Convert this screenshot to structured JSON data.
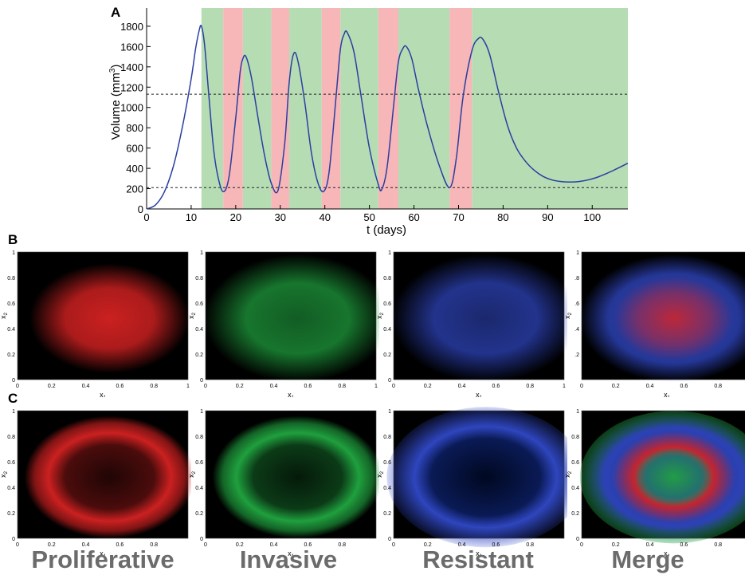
{
  "panels": {
    "a": "A",
    "b": "B",
    "c": "C"
  },
  "column_labels": [
    "Proliferative",
    "Invasive",
    "Resistant",
    "Merge"
  ],
  "colors": {
    "curve": "#2a3fa0",
    "treatment_on": "#b6dcb4",
    "treatment_off": "#f7b6b8",
    "proliferative": "#d62222",
    "invasive": "#21a841",
    "resistant": "#3149c8",
    "label_gray": "#6b6b6b"
  },
  "chart_data": [
    {
      "type": "line",
      "title": "",
      "xlabel": "t (days)",
      "ylabel": "Volume (mm",
      "ylabel_superscript": "3",
      "ylabel_suffix": ")",
      "xlim": [
        0,
        108
      ],
      "ylim": [
        0,
        1980
      ],
      "xticks": [
        0,
        10,
        20,
        30,
        40,
        50,
        60,
        70,
        80,
        90,
        100
      ],
      "yticks": [
        0,
        200,
        400,
        600,
        800,
        1000,
        1200,
        1400,
        1600,
        1800
      ],
      "thresholds": [
        1130,
        210
      ],
      "treatment_on_intervals": [
        [
          12.3,
          17.2
        ],
        [
          21.6,
          28.0
        ],
        [
          32.0,
          39.3
        ],
        [
          43.5,
          52.0
        ],
        [
          56.5,
          68.0
        ],
        [
          73.0,
          108
        ]
      ],
      "treatment_off_intervals": [
        [
          17.2,
          21.6
        ],
        [
          28.0,
          32.0
        ],
        [
          39.3,
          43.5
        ],
        [
          52.0,
          56.5
        ],
        [
          68.0,
          73.0
        ]
      ],
      "series": [
        {
          "x": [
            0,
            2,
            4,
            6,
            8,
            10,
            11,
            11.8,
            12.3,
            13,
            14,
            15,
            16,
            17.2,
            18.5,
            20,
            21,
            21.6,
            22.3,
            23.5,
            25,
            26.5,
            28,
            29.5,
            31,
            32,
            33,
            34,
            35.5,
            37,
            38.5,
            39.8,
            41,
            42.5,
            43.5,
            44.3,
            45,
            46.5,
            48,
            50,
            52,
            52.8,
            54,
            55.5,
            56.5,
            57.5,
            58.3,
            59.5,
            61,
            63,
            65.5,
            68,
            69.5,
            71,
            73,
            74.5,
            75.5,
            77,
            79,
            81,
            83,
            85,
            87,
            89,
            91,
            93,
            95,
            97,
            99,
            101,
            103,
            105,
            108
          ],
          "y": [
            0,
            40,
            170,
            420,
            800,
            1280,
            1580,
            1760,
            1800,
            1620,
            1100,
            600,
            320,
            170,
            320,
            900,
            1350,
            1480,
            1500,
            1300,
            900,
            520,
            250,
            185,
            650,
            1250,
            1530,
            1450,
            1050,
            550,
            250,
            175,
            380,
            1100,
            1580,
            1720,
            1740,
            1550,
            1150,
            600,
            240,
            195,
            420,
            1050,
            1450,
            1580,
            1600,
            1480,
            1180,
            820,
            450,
            210,
            500,
            1100,
            1560,
            1680,
            1670,
            1520,
            1150,
            820,
            600,
            470,
            380,
            320,
            285,
            270,
            265,
            270,
            285,
            310,
            345,
            385,
            450
          ]
        }
      ]
    },
    {
      "type": "heatmap",
      "panel": "B",
      "xlabel": "x1",
      "ylabel": "x2",
      "xlim": [
        0,
        1
      ],
      "ylim": [
        0,
        1
      ],
      "xticks": [
        "0",
        "0.2",
        "0.4",
        "0.6",
        "0.8",
        "1"
      ],
      "yticks": [
        "0",
        "0.2",
        "0.4",
        "0.6",
        "0.8",
        "1"
      ],
      "xticks_merge": [
        "0",
        "0.2",
        "0.4",
        "0.6",
        "0.8"
      ],
      "yticks_merge": [
        ".2",
        ".4",
        ".6",
        ".8",
        "1"
      ],
      "channels": [
        "Proliferative",
        "Invasive",
        "Resistant",
        "Merge"
      ]
    },
    {
      "type": "heatmap",
      "panel": "C",
      "xlabel": "x1",
      "ylabel": "x2",
      "xlim": [
        0,
        1
      ],
      "ylim": [
        0,
        1
      ],
      "xticks": [
        "0",
        "0.2",
        "0.4",
        "0.6",
        "0.8"
      ],
      "yticks": [
        "0",
        "0.2",
        "0.4",
        "0.6",
        "0.8",
        "1"
      ],
      "yticks_alt": [
        "0",
        "0.2",
        "0.4",
        "0.6",
        "0.8",
        "1"
      ],
      "channels": [
        "Proliferative",
        "Invasive",
        "Resistant",
        "Merge"
      ]
    }
  ]
}
